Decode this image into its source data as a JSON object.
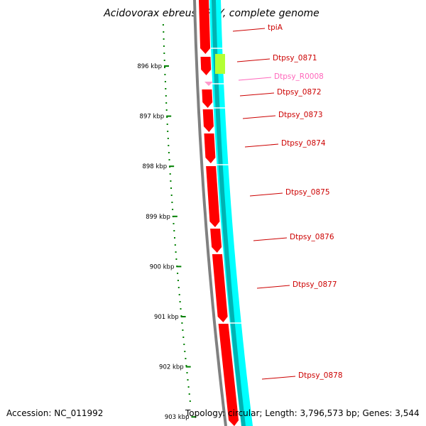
{
  "title": "Acidovorax ebreus TPSY, complete genome",
  "footer": {
    "accession": "Accession: NC_011992",
    "topology": "Topology: circular; Length: 3,796,573 bp; Genes: 3,544"
  },
  "colors": {
    "cds": "#ff0000",
    "cds_dark": "#cc0000",
    "rrna": "#ff99cc",
    "trna": "#b3ff33",
    "gc_track": "#00ffff",
    "gc_track_dark": "#00b3b3",
    "backbone": "#808080",
    "scale_tick": "#008000",
    "label_text": "#cc0000",
    "label_text_rna": "#ff66bb"
  },
  "scale_ticks": [
    "896 kbp",
    "897 kbp",
    "898 kbp",
    "899 kbp",
    "900 kbp",
    "901 kbp",
    "902 kbp",
    "903 kbp"
  ],
  "gene_labels": [
    {
      "name": "tpiA",
      "type": "cds"
    },
    {
      "name": "Dtpsy_0871",
      "type": "trna"
    },
    {
      "name": "Dtpsy_R0008",
      "type": "rrna"
    },
    {
      "name": "Dtpsy_0872",
      "type": "cds"
    },
    {
      "name": "Dtpsy_0873",
      "type": "cds"
    },
    {
      "name": "Dtpsy_0874",
      "type": "cds"
    },
    {
      "name": "Dtpsy_0875",
      "type": "cds"
    },
    {
      "name": "Dtpsy_0876",
      "type": "cds"
    },
    {
      "name": "Dtpsy_0877",
      "type": "cds"
    },
    {
      "name": "Dtpsy_0878",
      "type": "cds"
    }
  ]
}
